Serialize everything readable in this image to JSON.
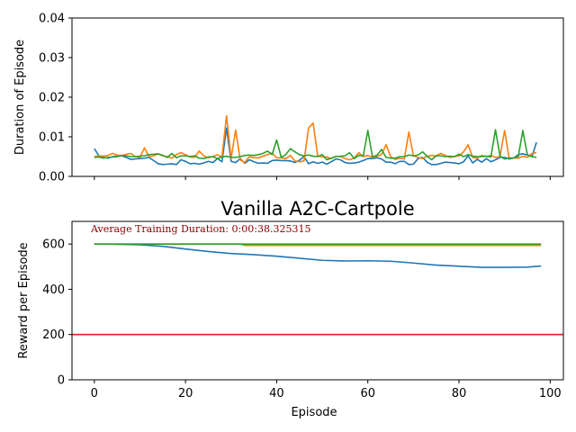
{
  "chart_data": [
    {
      "type": "line",
      "title": "",
      "xlabel": "",
      "ylabel": "Duration of Episode",
      "xlim": [
        -4.9,
        102.9
      ],
      "ylim": [
        0,
        0.04
      ],
      "xticks": [
        0,
        20,
        40,
        60,
        80,
        100
      ],
      "xtick_labels": [
        "",
        "",
        "",
        "",
        "",
        ""
      ],
      "yticks": [
        0.0,
        0.01,
        0.02,
        0.03,
        0.04
      ],
      "ytick_labels": [
        "0.00",
        "0.01",
        "0.02",
        "0.03",
        "0.04"
      ],
      "grid": false,
      "legend": "none",
      "series": [
        {
          "color": "#1f77b4",
          "values": [
            0.007,
            0.0052,
            0.0048,
            0.0046,
            0.005,
            0.0051,
            0.0052,
            0.0048,
            0.0043,
            0.0044,
            0.0045,
            0.0046,
            0.0048,
            0.004,
            0.0032,
            0.003,
            0.0031,
            0.0032,
            0.003,
            0.0042,
            0.0038,
            0.0032,
            0.0033,
            0.0031,
            0.0034,
            0.0038,
            0.0035,
            0.0045,
            0.0037,
            0.0122,
            0.0038,
            0.0035,
            0.0045,
            0.0033,
            0.0042,
            0.0037,
            0.0033,
            0.0034,
            0.0033,
            0.004,
            0.0041,
            0.004,
            0.004,
            0.0039,
            0.0035,
            0.0041,
            0.005,
            0.0032,
            0.0037,
            0.0033,
            0.0036,
            0.0031,
            0.0037,
            0.0044,
            0.0042,
            0.0035,
            0.0033,
            0.0034,
            0.0036,
            0.004,
            0.0045,
            0.0045,
            0.0047,
            0.0044,
            0.0036,
            0.0036,
            0.0032,
            0.0038,
            0.0038,
            0.003,
            0.0031,
            0.0045,
            0.0048,
            0.0036,
            0.003,
            0.003,
            0.0033,
            0.0036,
            0.0035,
            0.0034,
            0.0032,
            0.0037,
            0.0052,
            0.0034,
            0.0043,
            0.0036,
            0.0045,
            0.0037,
            0.0042,
            0.0048,
            0.0048,
            0.0044,
            0.0046,
            0.0055,
            0.0057,
            0.0054,
            0.005,
            0.0086
          ]
        },
        {
          "color": "#ff7f0e",
          "values": [
            0.005,
            0.0052,
            0.0051,
            0.0053,
            0.0058,
            0.0054,
            0.0052,
            0.0056,
            0.0058,
            0.005,
            0.0048,
            0.0072,
            0.005,
            0.0052,
            0.0057,
            0.0052,
            0.005,
            0.0046,
            0.0055,
            0.006,
            0.0055,
            0.0049,
            0.0048,
            0.0064,
            0.0052,
            0.0047,
            0.005,
            0.0055,
            0.0049,
            0.0153,
            0.0045,
            0.0117,
            0.0042,
            0.0035,
            0.005,
            0.0047,
            0.0047,
            0.0051,
            0.0055,
            0.0059,
            0.0047,
            0.0047,
            0.0045,
            0.0053,
            0.0039,
            0.0037,
            0.0039,
            0.0122,
            0.0135,
            0.0052,
            0.0049,
            0.0049,
            0.0045,
            0.0051,
            0.005,
            0.0045,
            0.0042,
            0.0046,
            0.006,
            0.005,
            0.0053,
            0.0048,
            0.0051,
            0.0055,
            0.008,
            0.005,
            0.0043,
            0.0046,
            0.0044,
            0.0112,
            0.0052,
            0.0048,
            0.0045,
            0.0051,
            0.0053,
            0.0052,
            0.0058,
            0.0053,
            0.0048,
            0.005,
            0.0052,
            0.0062,
            0.008,
            0.0048,
            0.0046,
            0.0053,
            0.005,
            0.0053,
            0.0048,
            0.005,
            0.0116,
            0.0046,
            0.0046,
            0.0046,
            0.0051,
            0.0048,
            0.0058,
            0.006
          ]
        },
        {
          "color": "#2ca02c",
          "values": [
            0.0048,
            0.0049,
            0.0046,
            0.0048,
            0.0049,
            0.005,
            0.0053,
            0.0052,
            0.005,
            0.005,
            0.0051,
            0.0052,
            0.0055,
            0.0056,
            0.0057,
            0.0053,
            0.0048,
            0.0058,
            0.0047,
            0.0052,
            0.0052,
            0.005,
            0.0052,
            0.0046,
            0.0045,
            0.0049,
            0.005,
            0.0045,
            0.0049,
            0.0051,
            0.0048,
            0.0048,
            0.005,
            0.0053,
            0.0054,
            0.0053,
            0.0055,
            0.0058,
            0.0064,
            0.0055,
            0.0092,
            0.0048,
            0.0055,
            0.007,
            0.0062,
            0.0055,
            0.0052,
            0.0054,
            0.0051,
            0.005,
            0.0055,
            0.0042,
            0.0046,
            0.005,
            0.0051,
            0.0052,
            0.006,
            0.0045,
            0.0053,
            0.0052,
            0.0116,
            0.005,
            0.0053,
            0.0068,
            0.0048,
            0.0046,
            0.0046,
            0.005,
            0.005,
            0.0054,
            0.0052,
            0.0054,
            0.0062,
            0.0051,
            0.0042,
            0.0052,
            0.0052,
            0.005,
            0.0051,
            0.005,
            0.0056,
            0.005,
            0.0055,
            0.0051,
            0.005,
            0.005,
            0.0051,
            0.0049,
            0.0118,
            0.0051,
            0.0044,
            0.0046,
            0.0047,
            0.005,
            0.0116,
            0.0054,
            0.005,
            0.0048
          ]
        }
      ]
    },
    {
      "type": "line",
      "title": "Vanilla A2C-Cartpole",
      "xlabel": "Episode",
      "ylabel": "Reward per Episode",
      "xlim": [
        -4.9,
        102.9
      ],
      "ylim": [
        0,
        700
      ],
      "xticks": [
        0,
        20,
        40,
        60,
        80,
        100
      ],
      "xtick_labels": [
        "0",
        "20",
        "40",
        "60",
        "80",
        "100"
      ],
      "yticks": [
        0,
        200,
        400,
        600
      ],
      "ytick_labels": [
        "0",
        "200",
        "400",
        "600"
      ],
      "grid": false,
      "legend": "none",
      "annotation": "Average Training Duration: 0:00:38.325315",
      "hline": {
        "y": 200,
        "color": "#e41a1c"
      },
      "series": [
        {
          "color": "#1f77b4",
          "x": [
            0,
            5,
            10,
            15,
            20,
            25,
            30,
            35,
            40,
            45,
            50,
            55,
            60,
            65,
            70,
            75,
            80,
            85,
            90,
            95,
            98
          ],
          "values": [
            600,
            599,
            597,
            590,
            578,
            567,
            558,
            553,
            546,
            537,
            528,
            525,
            526,
            524,
            516,
            507,
            502,
            497,
            497,
            498,
            503
          ]
        },
        {
          "color": "#ff7f0e",
          "x": [
            0,
            32,
            33,
            98
          ],
          "values": [
            600,
            600,
            594,
            594
          ]
        },
        {
          "color": "#2ca02c",
          "x": [
            0,
            98
          ],
          "values": [
            600,
            600
          ]
        }
      ]
    }
  ]
}
